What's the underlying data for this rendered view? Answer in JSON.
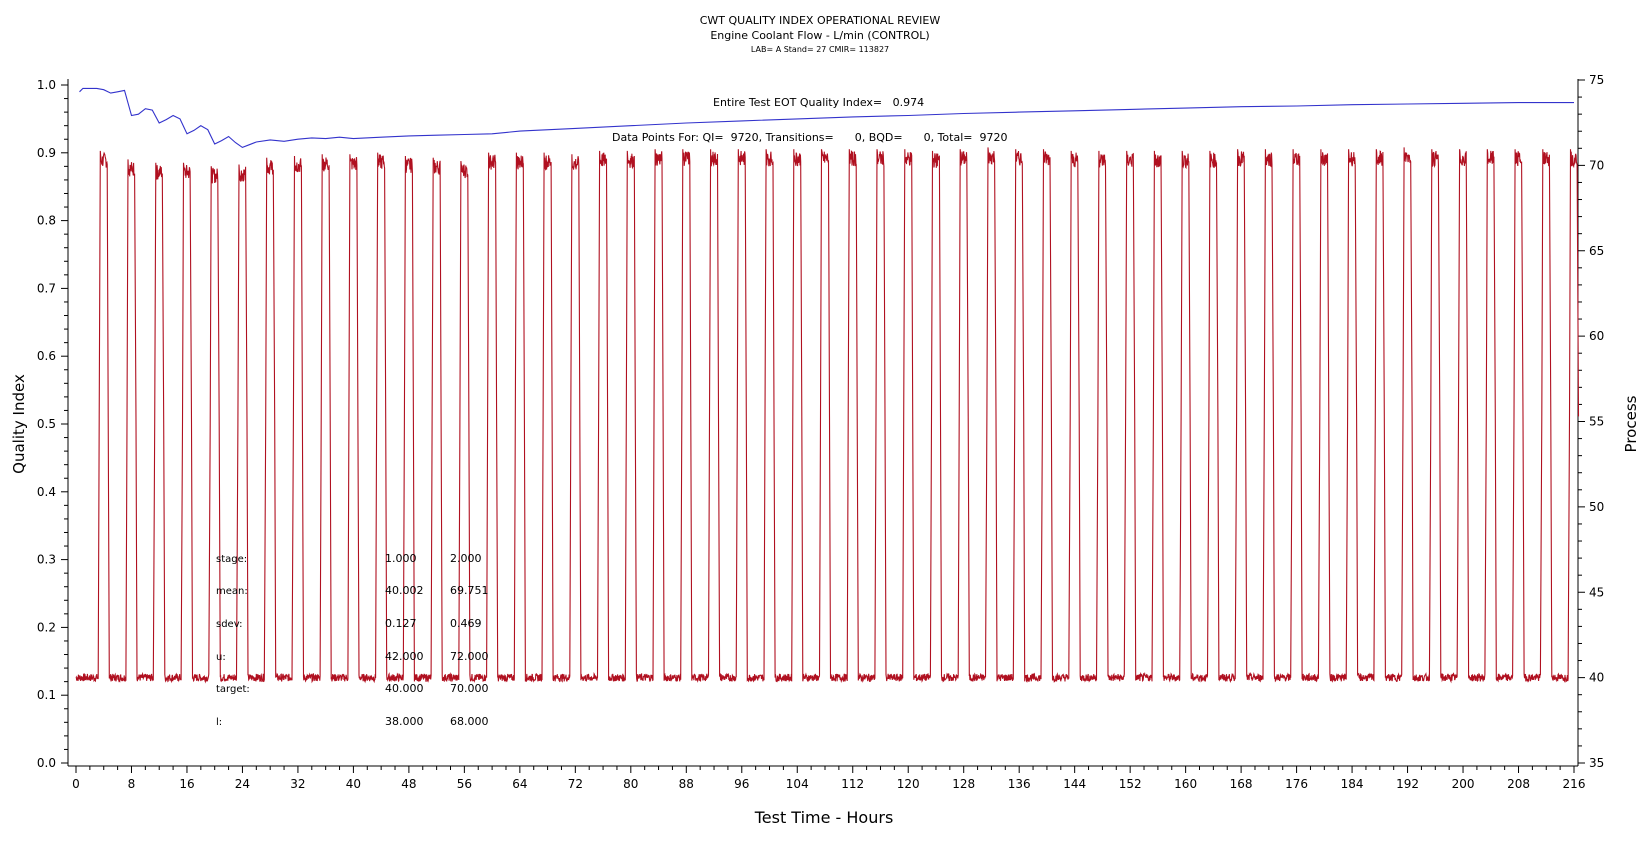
{
  "chart_data": {
    "type": "line",
    "title": "CWT QUALITY INDEX OPERATIONAL REVIEW",
    "subtitle": "Engine Coolant Flow - L/min (CONTROL)",
    "subtitle2": "LAB= A Stand= 27 CMIR= 113827",
    "xlabel": "Test Time - Hours",
    "ylabel_left": "Quality Index",
    "ylabel_right": "Process",
    "xlim": [
      0,
      216
    ],
    "ylim_left": [
      0.0,
      1.0
    ],
    "ylim_right": [
      35,
      75
    ],
    "x_ticks": [
      "0",
      "8",
      "16",
      "24",
      "32",
      "40",
      "48",
      "56",
      "64",
      "72",
      "80",
      "88",
      "96",
      "104",
      "112",
      "120",
      "128",
      "136",
      "144",
      "152",
      "160",
      "168",
      "176",
      "184",
      "192",
      "200",
      "208",
      "216"
    ],
    "y_left_ticks": [
      "0.0",
      "0.1",
      "0.2",
      "0.3",
      "0.4",
      "0.5",
      "0.6",
      "0.7",
      "0.8",
      "0.9",
      "1.0"
    ],
    "y_right_ticks": [
      "35",
      "40",
      "45",
      "50",
      "55",
      "60",
      "65",
      "70",
      "75"
    ],
    "annotations": {
      "eot": "Entire Test EOT Quality Index=   0.974",
      "points": "Data Points For: QI=  9720, Transitions=      0, BQD=      0, Total=  9720"
    },
    "stats_table": [
      {
        "label": "stage:",
        "v1": "1.000",
        "v2": "2.000"
      },
      {
        "label": "mean:",
        "v1": "40.002",
        "v2": "69.751"
      },
      {
        "label": "sdev:",
        "v1": "0.127",
        "v2": "0.469"
      },
      {
        "label": "u:",
        "v1": "42.000",
        "v2": "72.000"
      },
      {
        "label": "target:",
        "v1": "40.000",
        "v2": "70.000"
      },
      {
        "label": "l:",
        "v1": "38.000",
        "v2": "68.000"
      }
    ],
    "series": [
      {
        "axis": "left",
        "color": "#3333cc",
        "x": [
          0.5,
          1,
          2,
          3,
          4,
          5,
          6,
          7,
          8,
          9,
          10,
          11,
          12,
          13,
          14,
          15,
          16,
          17,
          18,
          19,
          20,
          21,
          22,
          23,
          24,
          25,
          26,
          28,
          30,
          32,
          34,
          36,
          38,
          40,
          44,
          48,
          52,
          56,
          60,
          64,
          72,
          80,
          88,
          96,
          104,
          112,
          120,
          128,
          136,
          144,
          152,
          160,
          168,
          176,
          184,
          192,
          200,
          208,
          216
        ],
        "values": [
          0.99,
          0.995,
          0.995,
          0.995,
          0.993,
          0.988,
          0.99,
          0.992,
          0.955,
          0.957,
          0.965,
          0.963,
          0.944,
          0.949,
          0.955,
          0.95,
          0.928,
          0.933,
          0.94,
          0.934,
          0.913,
          0.918,
          0.924,
          0.915,
          0.908,
          0.912,
          0.916,
          0.919,
          0.917,
          0.92,
          0.922,
          0.921,
          0.923,
          0.921,
          0.923,
          0.925,
          0.926,
          0.927,
          0.928,
          0.932,
          0.936,
          0.94,
          0.944,
          0.947,
          0.95,
          0.953,
          0.955,
          0.958,
          0.96,
          0.962,
          0.964,
          0.966,
          0.968,
          0.969,
          0.971,
          0.972,
          0.973,
          0.974,
          0.974
        ]
      },
      {
        "axis": "right",
        "color": "#b01020",
        "cycle_start_hours": [
          3.2,
          7.2,
          11.2,
          15.2,
          19.2,
          23.2,
          27.2,
          31.2,
          35.2,
          39.2,
          43.2,
          47.2,
          51.2,
          55.2,
          59.2,
          63.2,
          67.2,
          71.2,
          75.2,
          79.2,
          83.2,
          87.2,
          91.2,
          95.2,
          99.2,
          103.2,
          107.2,
          111.2,
          115.2,
          119.2,
          123.2,
          127.2,
          131.2,
          135.2,
          139.2,
          143.2,
          147.2,
          151.2,
          155.2,
          159.2,
          163.2,
          167.2,
          171.2,
          175.2,
          179.2,
          183.2,
          187.2,
          191.2,
          195.2,
          199.2,
          203.2,
          207.2,
          211.2,
          215.2
        ],
        "high_duration_hours": 1.0,
        "low_level": 40.0,
        "high_levels": [
          70.5,
          70.0,
          69.8,
          69.8,
          69.6,
          69.7,
          70.1,
          70.2,
          70.3,
          70.3,
          70.4,
          70.2,
          70.1,
          69.9,
          70.4,
          70.4,
          70.4,
          70.3,
          70.5,
          70.5,
          70.6,
          70.6,
          70.6,
          70.6,
          70.6,
          70.6,
          70.6,
          70.6,
          70.6,
          70.6,
          70.5,
          70.6,
          70.7,
          70.6,
          70.6,
          70.5,
          70.5,
          70.5,
          70.5,
          70.5,
          70.5,
          70.6,
          70.6,
          70.6,
          70.6,
          70.6,
          70.6,
          70.7,
          70.6,
          70.6,
          70.6,
          70.6,
          70.6,
          70.6
        ]
      }
    ]
  }
}
